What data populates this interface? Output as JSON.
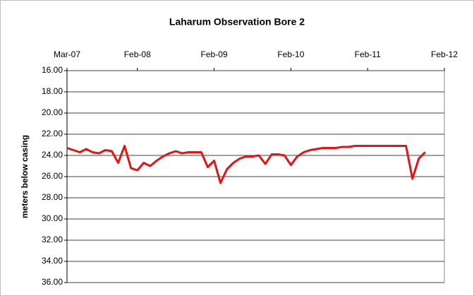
{
  "chart_data": {
    "type": "line",
    "title": "Laharum Observation Bore 2",
    "y_label": "meters below casing",
    "x": [
      "2007-03",
      "2007-04",
      "2007-05",
      "2007-06",
      "2007-07",
      "2007-08",
      "2007-09",
      "2007-10",
      "2007-11",
      "2007-12",
      "2008-01",
      "2008-02",
      "2008-03",
      "2008-04",
      "2008-05",
      "2008-06",
      "2008-07",
      "2008-08",
      "2008-09",
      "2008-10",
      "2008-11",
      "2008-12",
      "2009-01",
      "2009-02",
      "2009-03",
      "2009-04",
      "2009-05",
      "2009-06",
      "2009-07",
      "2009-08",
      "2009-09",
      "2009-10",
      "2009-11",
      "2009-12",
      "2010-01",
      "2010-02",
      "2010-03",
      "2010-04",
      "2010-05",
      "2010-06",
      "2010-07",
      "2010-08",
      "2010-09",
      "2010-10",
      "2010-11",
      "2010-12",
      "2011-01",
      "2011-02",
      "2011-03",
      "2011-04",
      "2011-05",
      "2011-06",
      "2011-07",
      "2011-08",
      "2011-09",
      "2011-10",
      "2011-11"
    ],
    "series": [
      {
        "name": "meters below casing",
        "color": "#e31414",
        "values": [
          23.3,
          23.5,
          23.7,
          23.4,
          23.7,
          23.8,
          23.5,
          23.6,
          24.7,
          23.1,
          25.2,
          25.4,
          24.7,
          25.0,
          24.5,
          24.1,
          23.8,
          23.6,
          23.8,
          23.7,
          23.7,
          23.7,
          25.1,
          24.5,
          26.6,
          25.3,
          24.7,
          24.3,
          24.1,
          24.1,
          24.0,
          24.8,
          23.9,
          23.9,
          24.0,
          24.9,
          24.1,
          23.7,
          23.5,
          23.4,
          23.3,
          23.3,
          23.3,
          23.2,
          23.2,
          23.1,
          23.1,
          23.1,
          23.1,
          23.1,
          23.1,
          23.1,
          23.1,
          23.1,
          26.2,
          24.3,
          23.7
        ]
      }
    ],
    "xlim": [
      "2007-03",
      "2012-02"
    ],
    "xticks": [
      {
        "value": "2007-03",
        "label": "Mar-07"
      },
      {
        "value": "2008-02",
        "label": "Feb-08"
      },
      {
        "value": "2009-02",
        "label": "Feb-09"
      },
      {
        "value": "2010-02",
        "label": "Feb-10"
      },
      {
        "value": "2011-02",
        "label": "Feb-11"
      },
      {
        "value": "2012-02",
        "label": "Feb-12"
      }
    ],
    "ylim": [
      16,
      36
    ],
    "y_inverted": true,
    "yticks": [
      {
        "value": 16,
        "label": "16.00"
      },
      {
        "value": 18,
        "label": "18.00"
      },
      {
        "value": 20,
        "label": "20.00"
      },
      {
        "value": 22,
        "label": "22.00"
      },
      {
        "value": 24,
        "label": "24.00"
      },
      {
        "value": 26,
        "label": "26.00"
      },
      {
        "value": 28,
        "label": "28.00"
      },
      {
        "value": 30,
        "label": "30.00"
      },
      {
        "value": 32,
        "label": "32.00"
      },
      {
        "value": 34,
        "label": "34.00"
      },
      {
        "value": 36,
        "label": "36.00"
      }
    ],
    "grid": true,
    "legend": false
  }
}
